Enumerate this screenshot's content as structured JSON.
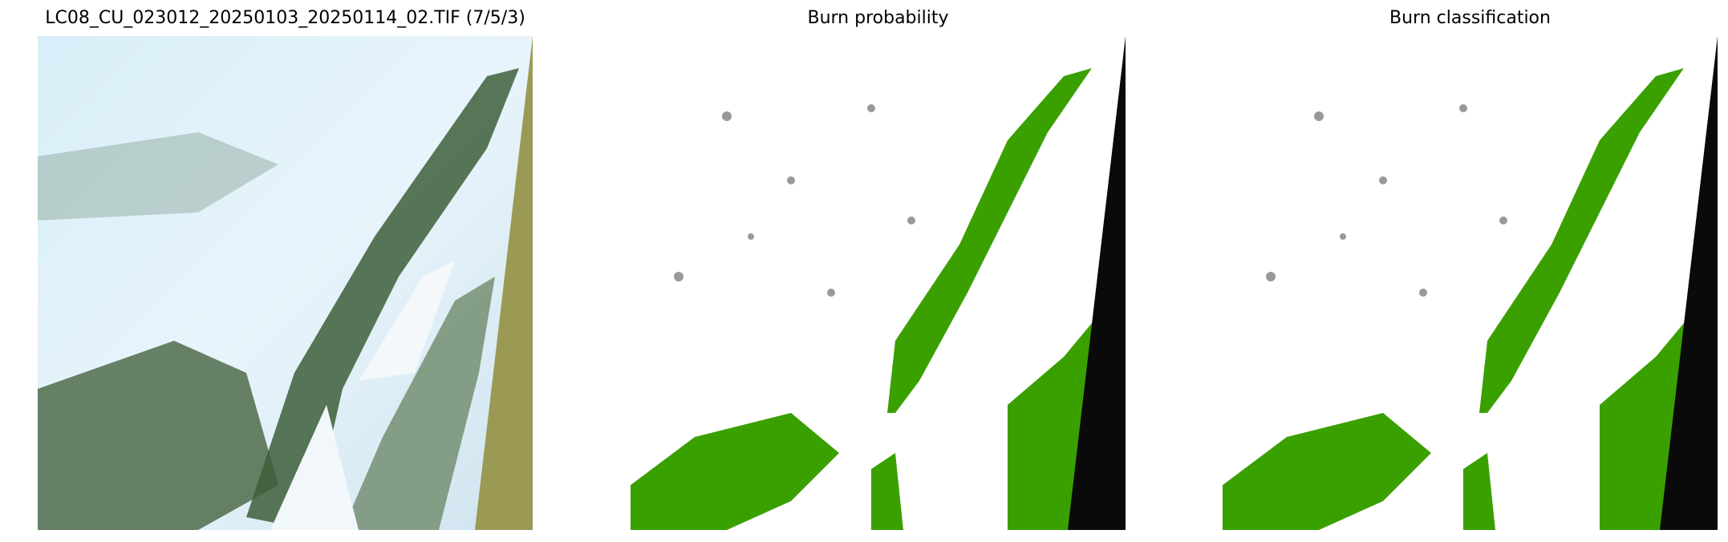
{
  "chart_data": [
    {
      "type": "image",
      "title": "LC08_CU_023012_20250103_20250114_02.TIF (7/5/3)",
      "axes": "off"
    },
    {
      "type": "image",
      "title": "Burn probability",
      "axes": "off",
      "colors": {
        "burned": "#3aa000",
        "unburned": "#ffffff",
        "uncertain": "#999999",
        "nodata": "#0a0a0a"
      }
    },
    {
      "type": "image",
      "title": "Burn classification",
      "axes": "off",
      "colors": {
        "burned": "#3aa000",
        "unburned": "#ffffff",
        "uncertain": "#999999",
        "nodata": "#0a0a0a"
      }
    }
  ]
}
